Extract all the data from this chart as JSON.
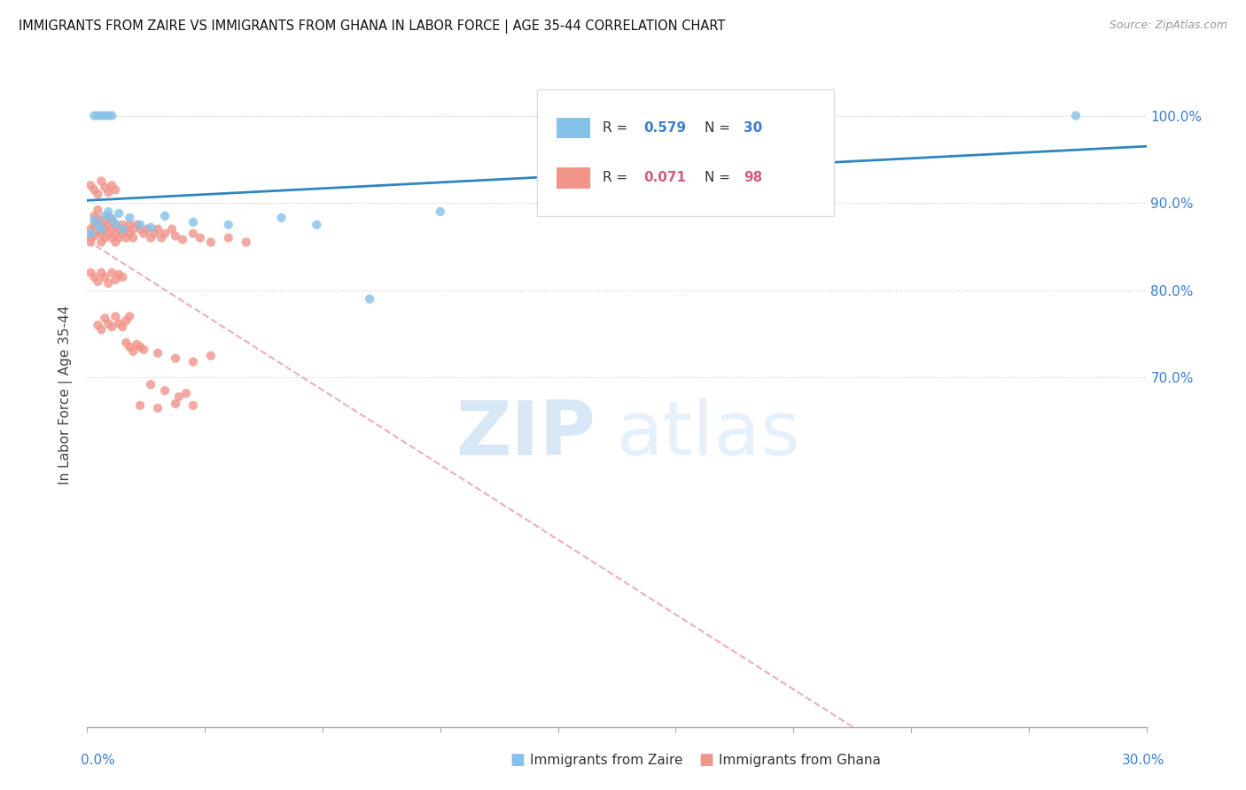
{
  "title": "IMMIGRANTS FROM ZAIRE VS IMMIGRANTS FROM GHANA IN LABOR FORCE | AGE 35-44 CORRELATION CHART",
  "source": "Source: ZipAtlas.com",
  "ylabel": "In Labor Force | Age 35-44",
  "legend_zaire": "Immigrants from Zaire",
  "legend_ghana": "Immigrants from Ghana",
  "R_zaire": "0.579",
  "N_zaire": "30",
  "R_ghana": "0.071",
  "N_ghana": "98",
  "color_zaire": "#85c1e9",
  "color_ghana": "#f1948a",
  "color_zaire_line": "#2e86c1",
  "color_ghana_line": "#e8a0b0",
  "watermark_zip": "ZIP",
  "watermark_atlas": "atlas",
  "xmin": 0.0,
  "xmax": 0.3,
  "ymin": 0.3,
  "ymax": 1.06,
  "ytick_vals": [
    0.7,
    0.8,
    0.9,
    1.0
  ],
  "ytick_labels": [
    "70.0%",
    "80.0%",
    "90.0%",
    "100.0%"
  ],
  "zaire_x": [
    0.001,
    0.002,
    0.003,
    0.004,
    0.005,
    0.006,
    0.007,
    0.008,
    0.009,
    0.01,
    0.012,
    0.015,
    0.018,
    0.022,
    0.03,
    0.04,
    0.055,
    0.065,
    0.08,
    0.1,
    0.13,
    0.15,
    0.19,
    0.28,
    0.002,
    0.003,
    0.004,
    0.005,
    0.006,
    0.007
  ],
  "zaire_y": [
    0.865,
    0.88,
    0.875,
    0.87,
    0.885,
    0.89,
    0.882,
    0.876,
    0.888,
    0.87,
    0.883,
    0.875,
    0.872,
    0.885,
    0.878,
    0.875,
    0.883,
    0.875,
    0.79,
    0.89,
    0.935,
    0.932,
    0.993,
    1.0,
    1.0,
    1.0,
    1.0,
    1.0,
    1.0,
    1.0
  ],
  "ghana_x": [
    0.001,
    0.001,
    0.001,
    0.002,
    0.002,
    0.002,
    0.003,
    0.003,
    0.003,
    0.003,
    0.004,
    0.004,
    0.004,
    0.005,
    0.005,
    0.005,
    0.006,
    0.006,
    0.006,
    0.007,
    0.007,
    0.007,
    0.008,
    0.008,
    0.008,
    0.009,
    0.009,
    0.01,
    0.01,
    0.011,
    0.011,
    0.012,
    0.012,
    0.013,
    0.013,
    0.014,
    0.015,
    0.016,
    0.017,
    0.018,
    0.019,
    0.02,
    0.021,
    0.022,
    0.024,
    0.025,
    0.027,
    0.03,
    0.032,
    0.035,
    0.04,
    0.045,
    0.001,
    0.002,
    0.003,
    0.004,
    0.005,
    0.006,
    0.007,
    0.008,
    0.003,
    0.004,
    0.005,
    0.006,
    0.007,
    0.008,
    0.009,
    0.01,
    0.011,
    0.012,
    0.001,
    0.002,
    0.003,
    0.004,
    0.005,
    0.006,
    0.007,
    0.008,
    0.009,
    0.01,
    0.015,
    0.02,
    0.025,
    0.03,
    0.035,
    0.011,
    0.012,
    0.013,
    0.014,
    0.016,
    0.018,
    0.022,
    0.026,
    0.028,
    0.015,
    0.02,
    0.025,
    0.03
  ],
  "ghana_y": [
    0.87,
    0.86,
    0.855,
    0.875,
    0.885,
    0.862,
    0.878,
    0.892,
    0.868,
    0.882,
    0.865,
    0.875,
    0.855,
    0.88,
    0.87,
    0.86,
    0.875,
    0.865,
    0.885,
    0.87,
    0.86,
    0.88,
    0.865,
    0.875,
    0.855,
    0.87,
    0.86,
    0.875,
    0.865,
    0.87,
    0.86,
    0.875,
    0.865,
    0.87,
    0.86,
    0.875,
    0.87,
    0.865,
    0.87,
    0.86,
    0.865,
    0.87,
    0.86,
    0.865,
    0.87,
    0.862,
    0.858,
    0.865,
    0.86,
    0.855,
    0.86,
    0.855,
    0.92,
    0.915,
    0.91,
    0.925,
    0.918,
    0.912,
    0.92,
    0.915,
    0.76,
    0.755,
    0.768,
    0.762,
    0.758,
    0.77,
    0.762,
    0.758,
    0.765,
    0.77,
    0.82,
    0.815,
    0.81,
    0.82,
    0.815,
    0.808,
    0.82,
    0.812,
    0.818,
    0.815,
    0.735,
    0.728,
    0.722,
    0.718,
    0.725,
    0.74,
    0.735,
    0.73,
    0.738,
    0.732,
    0.692,
    0.685,
    0.678,
    0.682,
    0.668,
    0.665,
    0.67,
    0.668
  ]
}
